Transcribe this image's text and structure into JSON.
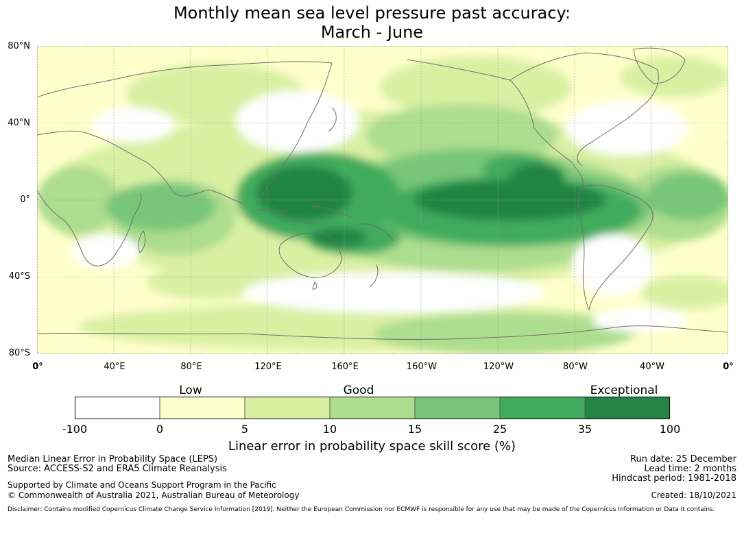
{
  "title": {
    "line1": "Monthly mean sea level pressure past accuracy:",
    "line2": "March - June"
  },
  "map": {
    "lat_labels": [
      "80°N",
      "40°N",
      "0°",
      "40°S",
      "80°S"
    ],
    "lon_labels": [
      "0°",
      "40°E",
      "80°E",
      "120°E",
      "160°E",
      "160°W",
      "120°W",
      "80°W",
      "40°W",
      "0°"
    ],
    "colors": {
      "land_coast": "#6e6e6e",
      "grid": "#9a9a9a"
    }
  },
  "legend": {
    "categories": [
      "Low",
      "Good",
      "Exceptional"
    ],
    "ticks": [
      "-100",
      "0",
      "5",
      "10",
      "15",
      "25",
      "35",
      "100"
    ],
    "colors": [
      "#ffffff",
      "#ffffcc",
      "#d9f0a3",
      "#addd8e",
      "#78c679",
      "#41ab5d",
      "#238443"
    ],
    "title": "Linear error in probability space skill score (%)"
  },
  "footer": {
    "metric": "Median Linear Error in Probability Space (LEPS)",
    "source": "Source: ACCESS-S2 and ERA5 Climate Reanalysis",
    "support": "Supported by Climate and Oceans Support Program in the Pacific",
    "copyright": "© Commonwealth of Australia 2021, Australian Bureau of Meteorology",
    "run_date": "Run date: 25 December",
    "lead_time": "Lead time: 2 months",
    "hindcast": "Hindcast period: 1981-2018",
    "created": "Created: 18/10/2021",
    "disclaimer": "Disclaimer: Contains modified Copernicus Climate Change Service Information [2019]. Neither the European Commission nor ECMWF is responsible for any use that may be made of the Copernicus Information or Data it contains."
  }
}
